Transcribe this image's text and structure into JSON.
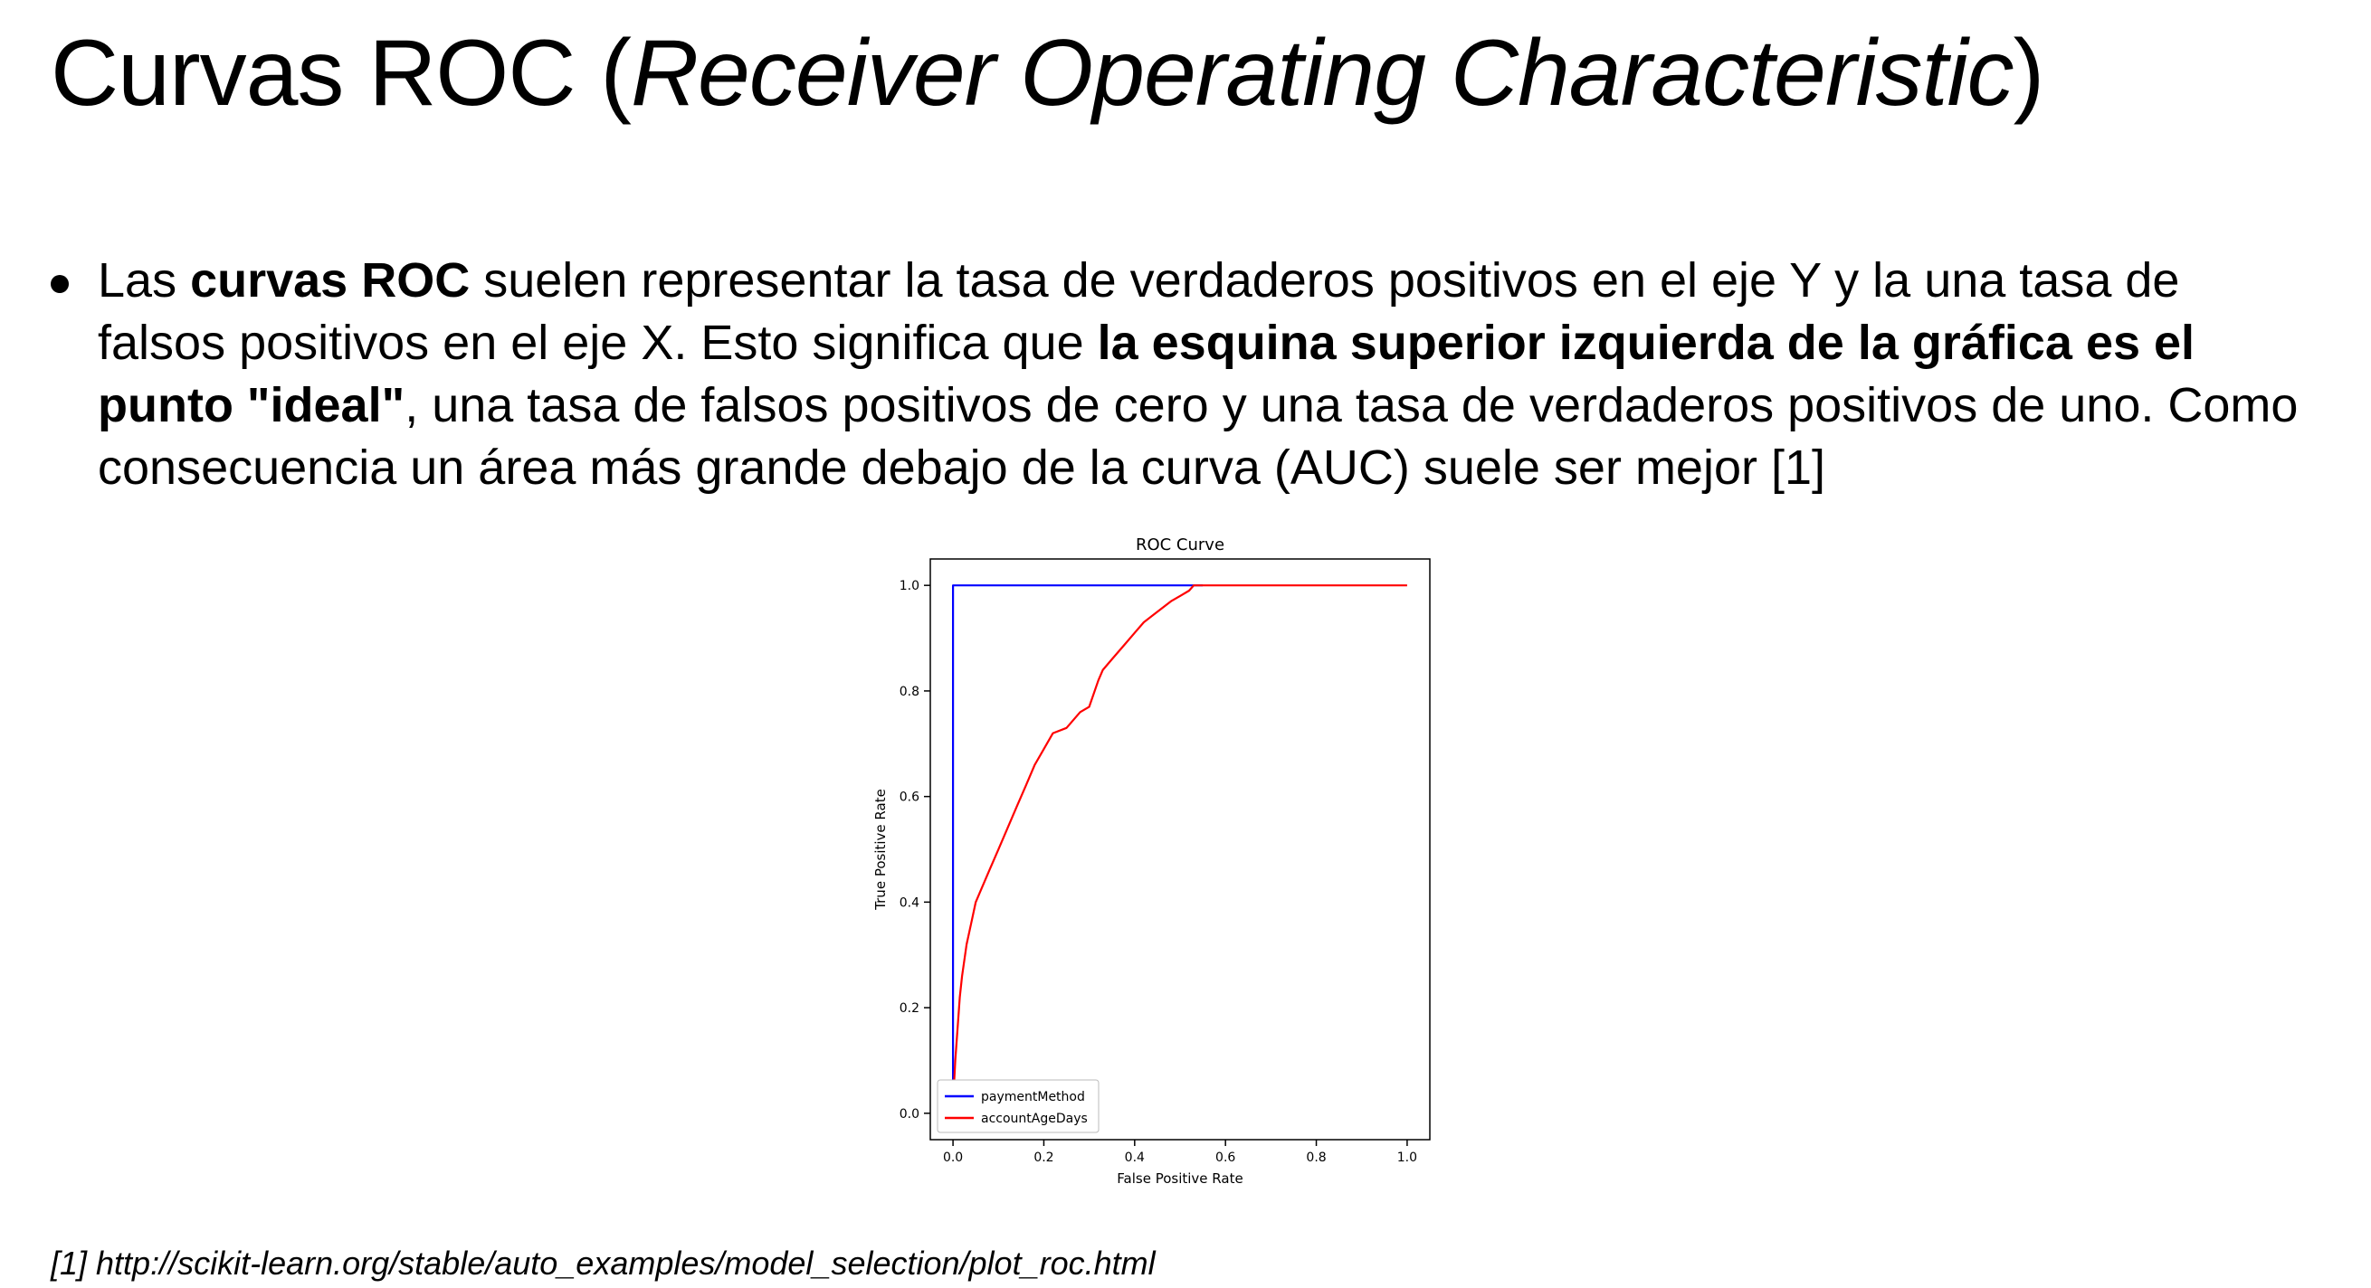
{
  "slide": {
    "title": {
      "plain": "Curvas ROC (",
      "italic": "Receiver Operating Characteristic",
      "close": ")"
    },
    "bullet": {
      "t1": "Las ",
      "b1": "curvas ROC",
      "t2": " suelen representar la tasa de verdaderos positivos en el eje Y y la una tasa de falsos positivos en el eje X. Esto significa que ",
      "b2": "la esquina superior izquierda de la gráfica es el punto \"ideal\"",
      "t3": ", una tasa de falsos positivos de cero y una tasa de verdaderos positivos de uno. Como consecuencia un área más grande debajo de la curva (AUC) suele ser mejor [1]"
    },
    "reference": "[1] http://scikit-learn.org/stable/auto_examples/model_selection/plot_roc.html"
  },
  "chart_data": {
    "type": "line",
    "title": "ROC Curve",
    "xlabel": "False Positive Rate",
    "ylabel": "True Positive Rate",
    "xlim": [
      -0.05,
      1.05
    ],
    "ylim": [
      -0.05,
      1.05
    ],
    "xticks": [
      "0.0",
      "0.2",
      "0.4",
      "0.6",
      "0.8",
      "1.0"
    ],
    "yticks": [
      "0.0",
      "0.2",
      "0.4",
      "0.6",
      "0.8",
      "1.0"
    ],
    "grid": false,
    "legend_position": "lower-left",
    "series": [
      {
        "name": "paymentMethod",
        "color": "#0000ff",
        "x": [
          0.0,
          0.0,
          0.55
        ],
        "y": [
          0.0,
          1.0,
          1.0
        ]
      },
      {
        "name": "accountAgeDays",
        "color": "#ff0000",
        "x": [
          0.0,
          0.002,
          0.005,
          0.01,
          0.015,
          0.02,
          0.03,
          0.04,
          0.05,
          0.06,
          0.08,
          0.1,
          0.12,
          0.14,
          0.16,
          0.18,
          0.2,
          0.22,
          0.25,
          0.28,
          0.3,
          0.32,
          0.33,
          0.35,
          0.38,
          0.4,
          0.42,
          0.45,
          0.48,
          0.5,
          0.52,
          0.53,
          0.55,
          0.6,
          0.7,
          0.8,
          0.9,
          1.0
        ],
        "y": [
          0.0,
          0.05,
          0.1,
          0.16,
          0.22,
          0.26,
          0.32,
          0.36,
          0.4,
          0.42,
          0.46,
          0.5,
          0.54,
          0.58,
          0.62,
          0.66,
          0.69,
          0.72,
          0.73,
          0.76,
          0.77,
          0.82,
          0.84,
          0.86,
          0.89,
          0.91,
          0.93,
          0.95,
          0.97,
          0.98,
          0.99,
          1.0,
          1.0,
          1.0,
          1.0,
          1.0,
          1.0,
          1.0
        ]
      }
    ]
  }
}
